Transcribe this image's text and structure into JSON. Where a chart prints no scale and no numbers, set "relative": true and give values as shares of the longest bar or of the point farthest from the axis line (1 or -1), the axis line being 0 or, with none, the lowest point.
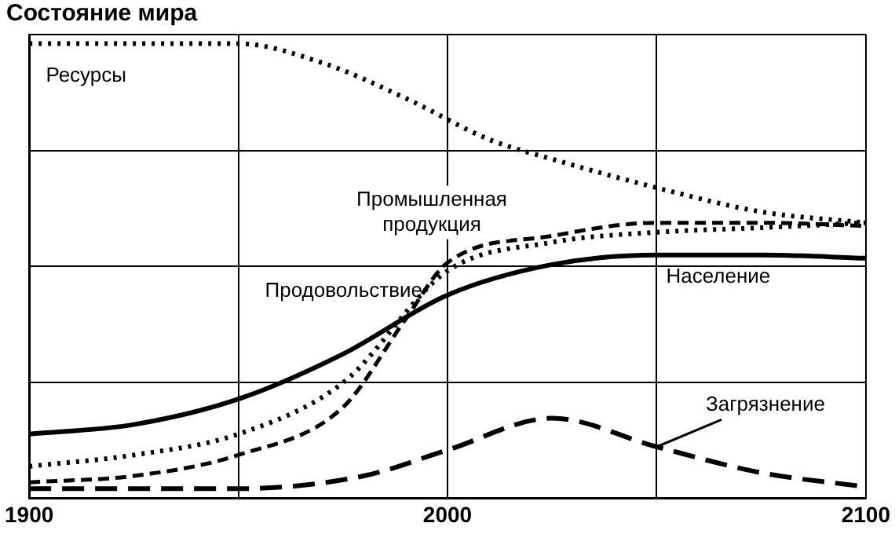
{
  "chart_data": {
    "type": "line",
    "title": "Состояние мира",
    "relative": true,
    "tick_labels": "x",
    "grid": true,
    "legend": false,
    "marker": "none",
    "xlim": [
      1900,
      2100
    ],
    "xticks": [
      1900,
      {
        "value": 1950,
        "label": null
      },
      2000,
      {
        "value": 2050,
        "label": null
      },
      2100
    ],
    "series": [
      {
        "name": "Ресурсы",
        "color": "#000000",
        "line_style": "dotted",
        "x": [
          1900,
          1950,
          1970,
          1990,
          2010,
          2025,
          2050,
          2075,
          2100
        ],
        "values": [
          1.0,
          1.0,
          0.958,
          0.88,
          0.789,
          0.746,
          0.683,
          0.63,
          0.606
        ]
      },
      {
        "name": "Промышленная продукция",
        "color": "#000000",
        "line_style": "dashed",
        "x": [
          1900,
          1925,
          1950,
          1975,
          1990,
          2000,
          2025,
          2050,
          2075,
          2100
        ],
        "values": [
          0.035,
          0.049,
          0.095,
          0.2,
          0.394,
          0.518,
          0.577,
          0.606,
          0.606,
          0.599
        ]
      },
      {
        "name": "Продовольствие",
        "color": "#000000",
        "line_style": "dotted",
        "x": [
          1900,
          1925,
          1950,
          1975,
          2000,
          2025,
          2050,
          2075,
          2100
        ],
        "values": [
          0.07,
          0.095,
          0.141,
          0.254,
          0.5,
          0.563,
          0.585,
          0.595,
          0.606
        ]
      },
      {
        "name": "Население",
        "color": "#000000",
        "line_style": "solid",
        "x": [
          1900,
          1925,
          1950,
          1975,
          2000,
          2025,
          2050,
          2075,
          2100
        ],
        "values": [
          0.141,
          0.162,
          0.218,
          0.317,
          0.447,
          0.514,
          0.535,
          0.535,
          0.528
        ]
      },
      {
        "name": "Загрязнение",
        "color": "#000000",
        "line_style": "longdash",
        "x": [
          1900,
          1950,
          1980,
          2000,
          2025,
          2050,
          2075,
          2100
        ],
        "values": [
          0.021,
          0.021,
          0.049,
          0.106,
          0.176,
          0.113,
          0.056,
          0.025
        ]
      }
    ]
  }
}
